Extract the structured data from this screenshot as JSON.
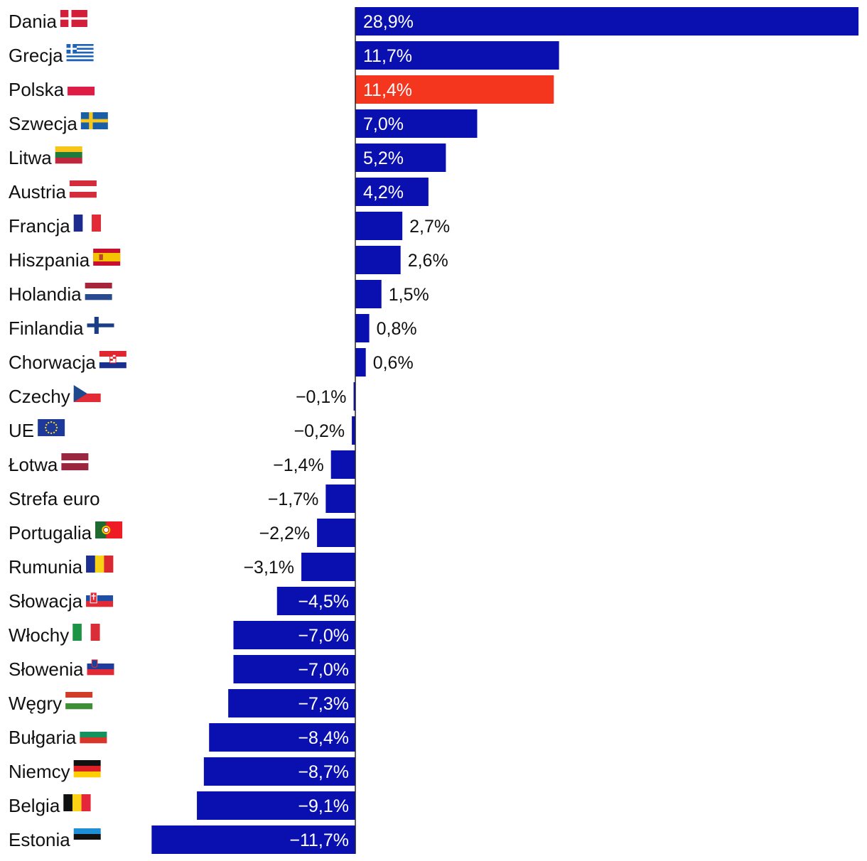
{
  "chart_data": {
    "type": "bar",
    "orientation": "horizontal",
    "title": "",
    "xlabel": "",
    "ylabel": "",
    "value_suffix": "%",
    "xlim": [
      -12,
      29
    ],
    "grid": false,
    "legend": "none",
    "colors": {
      "default": "#0a10b0",
      "highlight": "#f4361e",
      "axis": "#222222"
    },
    "categories": [
      "Dania",
      "Grecja",
      "Polska",
      "Szwecja",
      "Litwa",
      "Austria",
      "Francja",
      "Hiszpania",
      "Holandia",
      "Finlandia",
      "Chorwacja",
      "Czechy",
      "UE",
      "Łotwa",
      "Strefa euro",
      "Portugalia",
      "Rumunia",
      "Słowacja",
      "Włochy",
      "Słowenia",
      "Węgry",
      "Bułgaria",
      "Niemcy",
      "Belgia",
      "Estonia"
    ],
    "values": [
      28.9,
      11.7,
      11.4,
      7.0,
      5.2,
      4.2,
      2.7,
      2.6,
      1.5,
      0.8,
      0.6,
      -0.1,
      -0.2,
      -1.4,
      -1.7,
      -2.2,
      -3.1,
      -4.5,
      -7.0,
      -7.0,
      -7.3,
      -8.4,
      -8.7,
      -9.1,
      -11.7
    ],
    "value_labels": [
      "28,9%",
      "11,7%",
      "11,4%",
      "7,0%",
      "5,2%",
      "4,2%",
      "2,7%",
      "2,6%",
      "1,5%",
      "0,8%",
      "0,6%",
      "−0,1%",
      "−0,2%",
      "−1,4%",
      "−1,7%",
      "−2,2%",
      "−3,1%",
      "−4,5%",
      "−7,0%",
      "−7,0%",
      "−7,3%",
      "−8,4%",
      "−8,7%",
      "−9,1%",
      "−11,7%"
    ],
    "highlight": [
      "Polska"
    ],
    "flags": [
      "denmark-flag",
      "greece-flag",
      "poland-flag",
      "sweden-flag",
      "lithuania-flag",
      "austria-flag",
      "france-flag",
      "spain-flag",
      "netherlands-flag",
      "finland-flag",
      "croatia-flag",
      "czechia-flag",
      "eu-flag",
      "latvia-flag",
      "",
      "portugal-flag",
      "romania-flag",
      "slovakia-flag",
      "italy-flag",
      "slovenia-flag",
      "hungary-flag",
      "bulgaria-flag",
      "germany-flag",
      "belgium-flag",
      "estonia-flag"
    ]
  }
}
